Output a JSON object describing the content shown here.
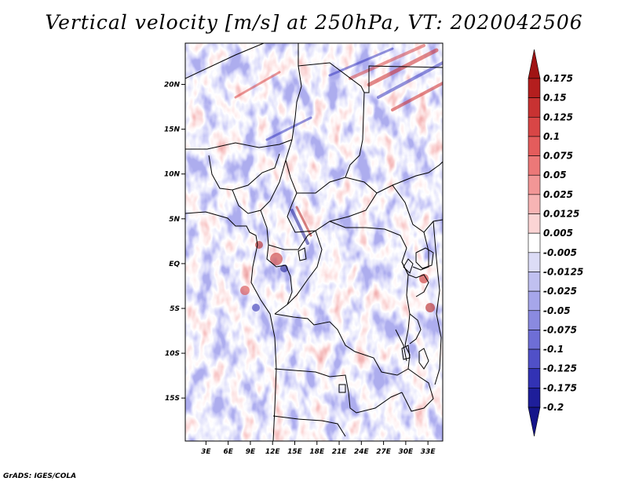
{
  "title": "Vertical velocity [m/s] at 250hPa, VT: 2020042506",
  "credit": "GrADS: IGES/COLA",
  "map": {
    "lat_labels": [
      {
        "label": "20N",
        "lat": 20
      },
      {
        "label": "15N",
        "lat": 15
      },
      {
        "label": "10N",
        "lat": 10
      },
      {
        "label": "5N",
        "lat": 5
      },
      {
        "label": "EQ",
        "lat": 0
      },
      {
        "label": "5S",
        "lat": -5
      },
      {
        "label": "10S",
        "lat": -10
      },
      {
        "label": "15S",
        "lat": -15
      }
    ],
    "lon_labels": [
      {
        "label": "3E",
        "lon": 3
      },
      {
        "label": "6E",
        "lon": 6
      },
      {
        "label": "9E",
        "lon": 9
      },
      {
        "label": "12E",
        "lon": 12
      },
      {
        "label": "15E",
        "lon": 15
      },
      {
        "label": "18E",
        "lon": 18
      },
      {
        "label": "21E",
        "lon": 21
      },
      {
        "label": "24E",
        "lon": 24
      },
      {
        "label": "27E",
        "lon": 27
      },
      {
        "label": "30E",
        "lon": 30
      },
      {
        "label": "33E",
        "lon": 33
      }
    ],
    "lon_range": [
      0.2,
      35
    ],
    "lat_range": [
      -19.8,
      24.6
    ]
  },
  "colorbar": {
    "levels": [
      "0.175",
      "0.15",
      "0.125",
      "0.1",
      "0.075",
      "0.05",
      "0.025",
      "0.0125",
      "0.005",
      "-0.005",
      "-0.0125",
      "-0.025",
      "-0.05",
      "-0.075",
      "-0.1",
      "-0.125",
      "-0.175",
      "-0.2"
    ],
    "colors": [
      "#a01414",
      "#b41e1e",
      "#c83232",
      "#d84646",
      "#e45c5c",
      "#ec7878",
      "#f29696",
      "#f7b4b4",
      "#fbd4d4",
      "#ffffff",
      "#dcdcf6",
      "#c0c0f0",
      "#a6a6ea",
      "#8a8ae0",
      "#6e6ed6",
      "#5050c8",
      "#3232b4",
      "#1e1e9a",
      "#14148a"
    ]
  }
}
